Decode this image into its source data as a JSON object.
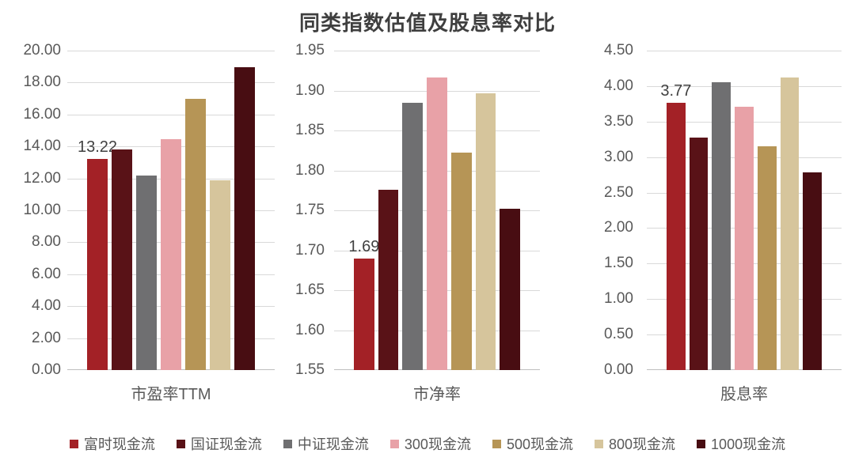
{
  "title": "同类指数估值及股息率对比",
  "legend": [
    {
      "label": "富时现金流",
      "color": "#A32126"
    },
    {
      "label": "国证现金流",
      "color": "#591217"
    },
    {
      "label": "中证现金流",
      "color": "#6F6F71"
    },
    {
      "label": "300现金流",
      "color": "#E8A1A7"
    },
    {
      "label": "500现金流",
      "color": "#B69556"
    },
    {
      "label": "800现金流",
      "color": "#D6C59C"
    },
    {
      "label": "1000现金流",
      "color": "#480D12"
    }
  ],
  "chart_data": [
    {
      "type": "bar",
      "xlabel": "市盈率TTM",
      "ylim": [
        0,
        20
      ],
      "ytick_step": 2,
      "ytick_decimals": 2,
      "grid": true,
      "categories": [
        "富时现金流",
        "国证现金流",
        "中证现金流",
        "300现金流",
        "500现金流",
        "800现金流",
        "1000现金流"
      ],
      "values": [
        13.22,
        13.8,
        12.2,
        14.47,
        16.98,
        11.9,
        18.97
      ],
      "data_labels": [
        {
          "index": 0,
          "text": "13.22"
        }
      ]
    },
    {
      "type": "bar",
      "xlabel": "市净率",
      "ylim": [
        1.55,
        1.95
      ],
      "ytick_step": 0.05,
      "ytick_decimals": 2,
      "grid": true,
      "categories": [
        "富时现金流",
        "国证现金流",
        "中证现金流",
        "300现金流",
        "500现金流",
        "800现金流",
        "1000现金流"
      ],
      "values": [
        1.69,
        1.776,
        1.885,
        1.916,
        1.822,
        1.897,
        1.752
      ],
      "data_labels": [
        {
          "index": 0,
          "text": "1.69"
        }
      ]
    },
    {
      "type": "bar",
      "xlabel": "股息率",
      "ylim": [
        0,
        4.5
      ],
      "ytick_step": 0.5,
      "ytick_decimals": 2,
      "grid": true,
      "categories": [
        "富时现金流",
        "国证现金流",
        "中证现金流",
        "300现金流",
        "500现金流",
        "800现金流",
        "1000现金流"
      ],
      "values": [
        3.77,
        3.27,
        4.06,
        3.71,
        3.15,
        4.12,
        2.78
      ],
      "data_labels": [
        {
          "index": 0,
          "text": "3.77"
        }
      ]
    }
  ]
}
